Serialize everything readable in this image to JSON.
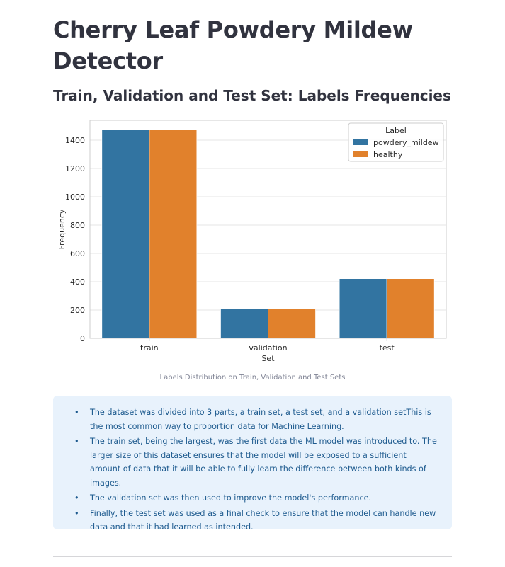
{
  "page": {
    "title": "Cherry Leaf Powdery Mildew Detector",
    "subtitle": "Train, Validation and Test Set: Labels Frequencies",
    "caption": "Labels Distribution on Train, Validation and Test Sets"
  },
  "chart_data": {
    "type": "bar",
    "categories": [
      "train",
      "validation",
      "test"
    ],
    "series": [
      {
        "name": "powdery_mildew",
        "values": [
          1472,
          210,
          422
        ],
        "color": "#3274a1"
      },
      {
        "name": "healthy",
        "values": [
          1472,
          210,
          422
        ],
        "color": "#e1812c"
      }
    ],
    "xlabel": "Set",
    "ylabel": "Frequency",
    "ylim": [
      0,
      1540
    ],
    "yticks": [
      0,
      200,
      400,
      600,
      800,
      1000,
      1200,
      1400
    ],
    "legend_title": "Label",
    "legend_position": "top-right",
    "grid": true
  },
  "info": {
    "items": [
      "The dataset was divided into 3 parts, a train set, a test set, and a validation setThis is the most common way to proportion data for Machine Learning.",
      "The train set, being the largest, was the first data the ML model was introduced to. The larger size of this dataset ensures that the model will be exposed to a sufficient amount of data that it will be able to fully learn the difference between both kinds of images.",
      "The validation set was then used to improve the model's performance.",
      "Finally, the test set was used as a final check to ensure that the model can handle new data and that it had learned as intended."
    ]
  }
}
